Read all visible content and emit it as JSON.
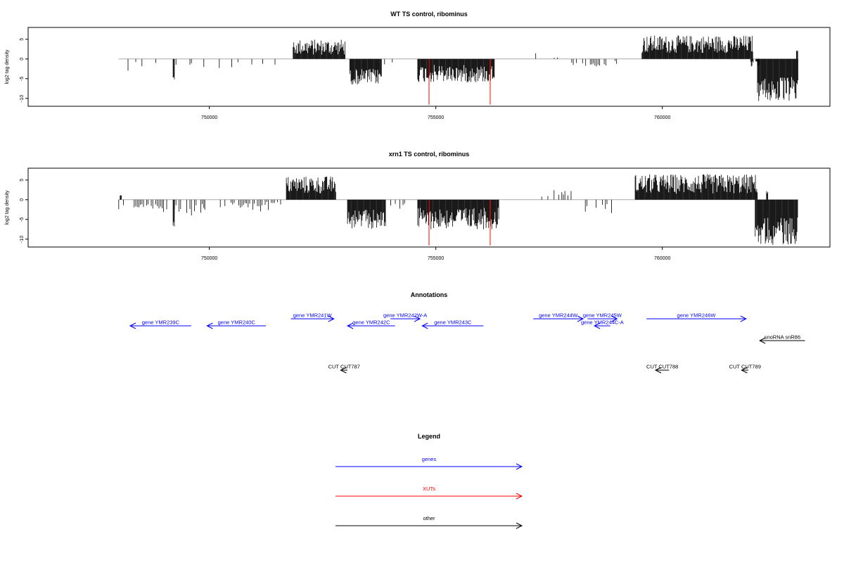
{
  "colors": {
    "genes": "#0000ff",
    "xuts": "#ff0000",
    "other": "#000000",
    "baseline": "#aaaaaa",
    "peak": "#ff0000"
  },
  "chart_data": [
    {
      "type": "bar",
      "title": "WT TS control, ribominus",
      "ylabel": "log2 tag density",
      "xlim": [
        746000,
        763700
      ],
      "ylim": [
        -12,
        8
      ],
      "xticks": [
        750000,
        755000,
        760000
      ],
      "xtick_labels": [
        "750000",
        "755000",
        "760000"
      ],
      "yticks": [
        -10,
        -5,
        0,
        5
      ],
      "ytick_labels": [
        "-10",
        "-5",
        "0",
        "5"
      ],
      "baseline_range": [
        748000,
        763000
      ],
      "regions": [
        {
          "start": 748000,
          "end": 751600,
          "strand": "minus",
          "min": 0.5,
          "max": 3.3,
          "density": 0.2,
          "mode": "sparse"
        },
        {
          "start": 749200,
          "end": 749240,
          "strand": "minus",
          "min": 4.5,
          "max": 5.2,
          "density": 1,
          "mode": "dense"
        },
        {
          "start": 751850,
          "end": 753000,
          "strand": "plus",
          "min": 1.0,
          "max": 5.0,
          "density": 1,
          "mode": "dense"
        },
        {
          "start": 753100,
          "end": 753800,
          "strand": "minus",
          "min": 2.5,
          "max": 6.5,
          "density": 1,
          "mode": "dense"
        },
        {
          "start": 753800,
          "end": 754300,
          "strand": "minus",
          "min": 0.5,
          "max": 2.0,
          "density": 0.35,
          "mode": "sparse"
        },
        {
          "start": 754600,
          "end": 756300,
          "strand": "minus",
          "min": 1.5,
          "max": 6.0,
          "density": 1,
          "mode": "dense"
        },
        {
          "start": 757000,
          "end": 758000,
          "strand": "plus",
          "min": 0.3,
          "max": 1.5,
          "density": 0.08,
          "mode": "sparse"
        },
        {
          "start": 758000,
          "end": 759000,
          "strand": "minus",
          "min": 0.5,
          "max": 2.5,
          "density": 0.3,
          "mode": "sparse"
        },
        {
          "start": 759550,
          "end": 762000,
          "strand": "plus",
          "min": 1.5,
          "max": 6.0,
          "density": 1,
          "mode": "dense"
        },
        {
          "start": 761950,
          "end": 762150,
          "strand": "minus",
          "min": 0.5,
          "max": 2.0,
          "density": 0.6,
          "mode": "dense"
        },
        {
          "start": 762100,
          "end": 763000,
          "strand": "minus",
          "min": 4.5,
          "max": 11.0,
          "density": 1,
          "mode": "dense"
        },
        {
          "start": 762960,
          "end": 763000,
          "strand": "plus",
          "min": 1.5,
          "max": 2.3,
          "density": 1,
          "mode": "dense"
        }
      ],
      "spikes": [
        {
          "x": 754850,
          "y": -11.6
        },
        {
          "x": 756200,
          "y": -11.6
        }
      ]
    },
    {
      "type": "bar",
      "title": "xrn1 TS control, ribominus",
      "ylabel": "log2 tag density",
      "xlim": [
        746000,
        763700
      ],
      "ylim": [
        -12,
        8
      ],
      "xticks": [
        750000,
        755000,
        760000
      ],
      "xtick_labels": [
        "750000",
        "755000",
        "760000"
      ],
      "yticks": [
        -10,
        -5,
        0,
        5
      ],
      "ytick_labels": [
        "-10",
        "-5",
        "0",
        "5"
      ],
      "baseline_range": [
        748000,
        763000
      ],
      "regions": [
        {
          "start": 748000,
          "end": 749900,
          "strand": "minus",
          "min": 1.0,
          "max": 4.0,
          "density": 0.7,
          "mode": "sparse"
        },
        {
          "start": 749200,
          "end": 749240,
          "strand": "minus",
          "min": 5.5,
          "max": 6.8,
          "density": 1,
          "mode": "dense"
        },
        {
          "start": 748030,
          "end": 748060,
          "strand": "plus",
          "min": 0.8,
          "max": 1.3,
          "density": 1,
          "mode": "dense"
        },
        {
          "start": 749900,
          "end": 751600,
          "strand": "minus",
          "min": 0.5,
          "max": 3.0,
          "density": 0.4,
          "mode": "sparse"
        },
        {
          "start": 751700,
          "end": 752800,
          "strand": "plus",
          "min": 1.5,
          "max": 6.0,
          "density": 1,
          "mode": "dense"
        },
        {
          "start": 753050,
          "end": 753900,
          "strand": "minus",
          "min": 2.5,
          "max": 7.5,
          "density": 1,
          "mode": "dense"
        },
        {
          "start": 753900,
          "end": 754400,
          "strand": "minus",
          "min": 0.5,
          "max": 2.5,
          "density": 0.4,
          "mode": "sparse"
        },
        {
          "start": 754600,
          "end": 756400,
          "strand": "minus",
          "min": 2.0,
          "max": 7.5,
          "density": 1,
          "mode": "dense"
        },
        {
          "start": 757200,
          "end": 758000,
          "strand": "plus",
          "min": 0.5,
          "max": 2.5,
          "density": 0.25,
          "mode": "sparse"
        },
        {
          "start": 758300,
          "end": 758900,
          "strand": "minus",
          "min": 1.0,
          "max": 4.0,
          "density": 0.45,
          "mode": "sparse"
        },
        {
          "start": 759400,
          "end": 762100,
          "strand": "plus",
          "min": 1.5,
          "max": 6.5,
          "density": 1,
          "mode": "dense"
        },
        {
          "start": 762050,
          "end": 763000,
          "strand": "minus",
          "min": 4.5,
          "max": 11.5,
          "density": 1,
          "mode": "dense"
        },
        {
          "start": 762300,
          "end": 762330,
          "strand": "plus",
          "min": 1.5,
          "max": 2.2,
          "density": 1,
          "mode": "dense"
        }
      ],
      "spikes": [
        {
          "x": 754850,
          "y": -11.6
        },
        {
          "x": 756200,
          "y": -11.6
        }
      ]
    }
  ],
  "annotations": {
    "title": "Annotations",
    "xlim": [
      746000,
      763700
    ],
    "features": [
      {
        "label": "gene YMR239C",
        "start": 748250,
        "end": 749600,
        "strand": "-",
        "type": "genes",
        "row": 2
      },
      {
        "label": "gene YMR240C",
        "start": 749950,
        "end": 751250,
        "strand": "-",
        "type": "genes",
        "row": 2
      },
      {
        "label": "gene YMR241W",
        "start": 751800,
        "end": 752750,
        "strand": "+",
        "type": "genes",
        "row": 1
      },
      {
        "label": "gene YMR242C",
        "start": 753050,
        "end": 754100,
        "strand": "-",
        "type": "genes",
        "row": 2
      },
      {
        "label": "gene YMR242W-A",
        "start": 754000,
        "end": 754650,
        "strand": "+",
        "type": "genes",
        "row": 1
      },
      {
        "label": "gene YMR243C",
        "start": 754700,
        "end": 756050,
        "strand": "-",
        "type": "genes",
        "row": 2
      },
      {
        "label": "gene YMR244W",
        "start": 757150,
        "end": 758250,
        "strand": "+",
        "type": "genes",
        "row": 1
      },
      {
        "label": "gene YMR245W",
        "start": 758350,
        "end": 759000,
        "strand": "+",
        "type": "genes",
        "row": 1
      },
      {
        "label": "gene YMR244C-A",
        "start": 758500,
        "end": 758850,
        "strand": "-",
        "type": "genes",
        "row": 2
      },
      {
        "label": "gene YMR246W",
        "start": 759650,
        "end": 761850,
        "strand": "+",
        "type": "genes",
        "row": 1
      },
      {
        "label": "snoRNA snR86",
        "start": 762150,
        "end": 763150,
        "strand": "-",
        "type": "other",
        "row": 3
      },
      {
        "label": "CUT CUT787",
        "start": 752900,
        "end": 753050,
        "strand": "-",
        "type": "other",
        "row": 4
      },
      {
        "label": "CUT CUT788",
        "start": 759850,
        "end": 760150,
        "strand": "-",
        "type": "other",
        "row": 4
      },
      {
        "label": "CUT CUT789",
        "start": 761750,
        "end": 761900,
        "strand": "-",
        "type": "other",
        "row": 4
      }
    ]
  },
  "legend": {
    "title": "Legend",
    "items": [
      {
        "label": "genes",
        "type": "genes"
      },
      {
        "label": "XUTs",
        "type": "xuts"
      },
      {
        "label": "other",
        "type": "other"
      }
    ]
  }
}
